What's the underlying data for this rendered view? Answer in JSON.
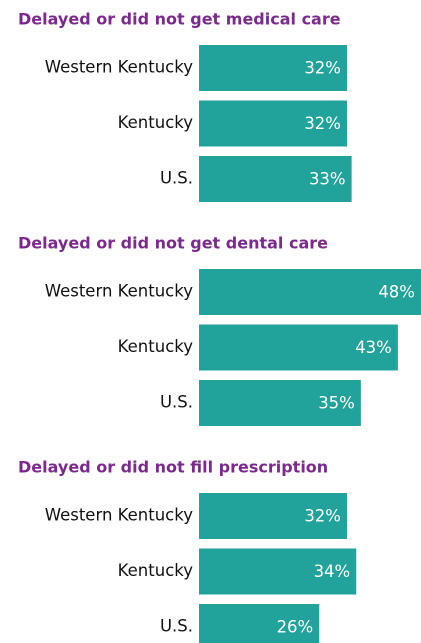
{
  "chart_data": [
    {
      "type": "bar",
      "orientation": "horizontal",
      "title": "Delayed or did not get medical care",
      "categories": [
        "Western Kentucky",
        "Kentucky",
        "U.S."
      ],
      "values": [
        32,
        32,
        33
      ],
      "value_labels": [
        "32%",
        "32%",
        "33%"
      ],
      "color": "#21a39b",
      "title_color": "#7b2a8c"
    },
    {
      "type": "bar",
      "orientation": "horizontal",
      "title": "Delayed or did not get dental care",
      "categories": [
        "Western Kentucky",
        "Kentucky",
        "U.S."
      ],
      "values": [
        48,
        43,
        35
      ],
      "value_labels": [
        "48%",
        "43%",
        "35%"
      ],
      "color": "#21a39b",
      "title_color": "#7b2a8c"
    },
    {
      "type": "bar",
      "orientation": "horizontal",
      "title": "Delayed or did not fill prescription",
      "categories": [
        "Western Kentucky",
        "Kentucky",
        "U.S."
      ],
      "values": [
        32,
        34,
        26
      ],
      "value_labels": [
        "32%",
        "34%",
        "26%"
      ],
      "color": "#21a39b",
      "title_color": "#7b2a8c"
    }
  ]
}
